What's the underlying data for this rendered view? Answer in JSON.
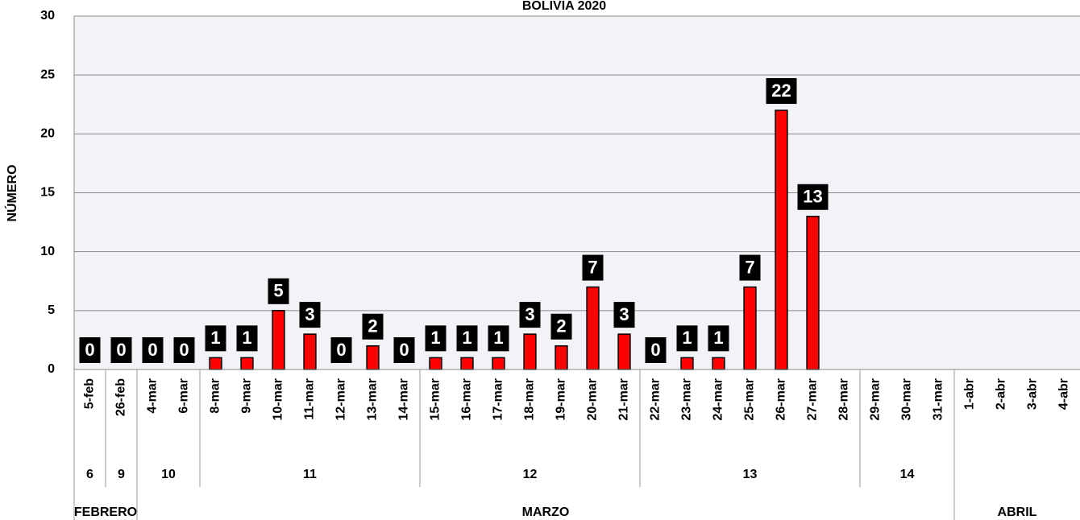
{
  "chart_data": {
    "type": "bar",
    "title": "BOLIVIA 2020",
    "y_label": "NÚMERO",
    "categories": [
      "5-feb",
      "26-feb",
      "4-mar",
      "6-mar",
      "8-mar",
      "9-mar",
      "10-mar",
      "11-mar",
      "12-mar",
      "13-mar",
      "14-mar",
      "15-mar",
      "16-mar",
      "17-mar",
      "18-mar",
      "19-mar",
      "20-mar",
      "21-mar",
      "22-mar",
      "23-mar",
      "24-mar",
      "25-mar",
      "26-mar",
      "27-mar",
      "28-mar",
      "29-mar",
      "30-mar",
      "31-mar",
      "1-abr",
      "2-abr",
      "3-abr",
      "4-abr"
    ],
    "values": [
      0,
      0,
      0,
      0,
      1,
      1,
      5,
      3,
      0,
      2,
      0,
      1,
      1,
      1,
      3,
      2,
      7,
      3,
      0,
      1,
      1,
      7,
      22,
      13,
      null,
      null,
      null,
      null,
      null,
      null,
      null,
      null
    ],
    "weeks": [
      "6",
      "9",
      "10",
      "10",
      "11",
      "11",
      "11",
      "11",
      "11",
      "11",
      "11",
      "12",
      "12",
      "12",
      "12",
      "12",
      "12",
      "12",
      "13",
      "13",
      "13",
      "13",
      "13",
      "13",
      "13",
      "14",
      "14",
      "14",
      null,
      null,
      null,
      null
    ],
    "months": [
      "FEBRERO",
      "FEBRERO",
      "MARZO",
      "MARZO",
      "MARZO",
      "MARZO",
      "MARZO",
      "MARZO",
      "MARZO",
      "MARZO",
      "MARZO",
      "MARZO",
      "MARZO",
      "MARZO",
      "MARZO",
      "MARZO",
      "MARZO",
      "MARZO",
      "MARZO",
      "MARZO",
      "MARZO",
      "MARZO",
      "MARZO",
      "MARZO",
      "MARZO",
      "MARZO",
      "MARZO",
      "MARZO",
      "ABRIL",
      "ABRIL",
      "ABRIL",
      "ABRIL"
    ],
    "color": "#ff0000",
    "ylim": [
      0,
      30
    ],
    "yticks": [
      0,
      5,
      10,
      15,
      20,
      25,
      30
    ],
    "grid": true
  }
}
